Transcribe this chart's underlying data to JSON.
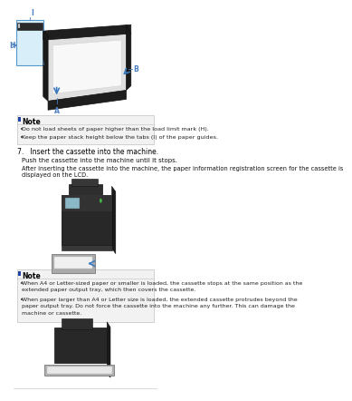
{
  "bg_color": "#ffffff",
  "note_bg": "#f0f0f0",
  "note_border": "#c0c0c0",
  "blue_label": "#4a7fc1",
  "dark_gray": "#2a2a2a",
  "mid_gray": "#555555",
  "note1_lines": [
    "Do not load sheets of paper higher than the load limit mark (H).",
    "Keep the paper stack height below the tabs (I) of the paper guides."
  ],
  "step7_heading": "7.   Insert the cassette into the machine.",
  "step7_body1": "Push the cassette into the machine until it stops.",
  "step7_body2a": "After inserting the cassette into the machine, the paper information registration screen for the cassette is",
  "step7_body2b": "displayed on the LCD.",
  "note2_lines": [
    "When A4 or Letter-sized paper or smaller is loaded, the cassette stops at the same position as the\nextended paper output tray, which then covers the cassette.",
    "When paper larger than A4 or Letter size is loaded, the extended cassette protrudes beyond the\npaper output tray. Do not force the cassette into the machine any further. This can damage the\nmachine or cassette."
  ],
  "label_H": "H",
  "label_I": "I",
  "label_A": "A",
  "label_B": "B"
}
